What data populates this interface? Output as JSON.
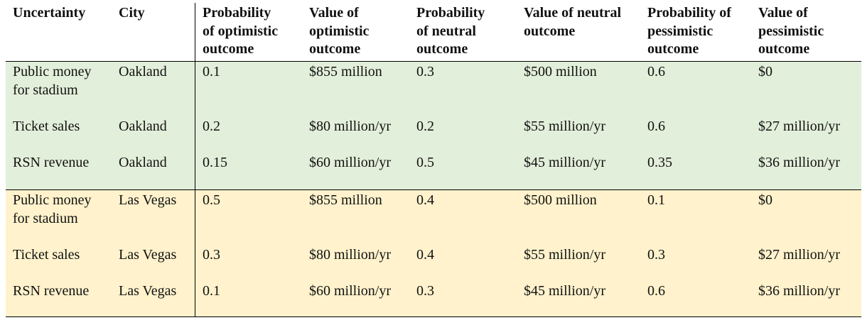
{
  "table": {
    "headers": [
      "Uncertainty",
      "City",
      "Probability\nof optimistic\noutcome",
      "Value of\noptimistic\noutcome",
      "Probability\nof neutral\noutcome",
      "Value of neutral\noutcome",
      "Probability of\npessimistic\noutcome",
      "Value of\npessimistic\noutcome"
    ],
    "groups": [
      {
        "city": "Oakland",
        "rows": [
          [
            "Public money for stadium",
            "Oakland",
            "0.1",
            "$855 million",
            "0.3",
            "$500 million",
            "0.6",
            "$0"
          ],
          [
            "Ticket sales",
            "Oakland",
            "0.2",
            "$80 million/yr",
            "0.2",
            "$55 million/yr",
            "0.6",
            "$27 million/yr"
          ],
          [
            "RSN revenue",
            "Oakland",
            "0.15",
            "$60 million/yr",
            "0.5",
            "$45 million/yr",
            "0.35",
            "$36 million/yr"
          ]
        ]
      },
      {
        "city": "Las Vegas",
        "rows": [
          [
            "Public money for stadium",
            "Las Vegas",
            "0.5",
            "$855 million",
            "0.4",
            "$500 million",
            "0.1",
            "$0"
          ],
          [
            "Ticket sales",
            "Las Vegas",
            "0.3",
            "$80 million/yr",
            "0.4",
            "$55 million/yr",
            "0.3",
            "$27 million/yr"
          ],
          [
            "RSN revenue",
            "Las Vegas",
            "0.1",
            "$60 million/yr",
            "0.3",
            "$45 million/yr",
            "0.6",
            "$36 million/yr"
          ]
        ]
      }
    ]
  },
  "colors": {
    "oakland_bg": "#e2efda",
    "vegas_bg": "#fff2cc",
    "rule": "#000000"
  }
}
